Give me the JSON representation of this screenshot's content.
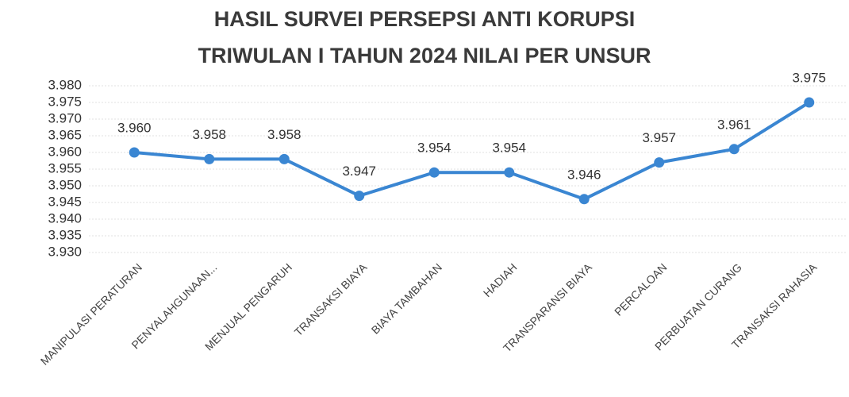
{
  "chart_data": {
    "type": "line",
    "title": [
      "HASIL SURVEI PERSEPSI ANTI KORUPSI",
      "TRIWULAN I TAHUN 2024 NILAI PER UNSUR"
    ],
    "categories": [
      "MANIPULASI PERATURAN",
      "PENYALAHGUNAAN...",
      "MENJUAL PENGARUH",
      "TRANSAKSI BIAYA",
      "BIAYA TAMBAHAN",
      "HADIAH",
      "TRANSPARANSI BIAYA",
      "PERCALOAN",
      "PERBUATAN CURANG",
      "TRANSAKSI RAHASIA"
    ],
    "values": [
      3.96,
      3.958,
      3.958,
      3.947,
      3.954,
      3.954,
      3.946,
      3.957,
      3.961,
      3.975
    ],
    "value_labels": [
      "3.960",
      "3.958",
      "3.958",
      "3.947",
      "3.954",
      "3.954",
      "3.946",
      "3.957",
      "3.961",
      "3.975"
    ],
    "color": "#3a86d2",
    "ylim": [
      3.93,
      3.98
    ],
    "yticks": [
      {
        "value": 3.93,
        "label": "3.930"
      },
      3.935,
      {
        "value": 3.94,
        "label": "3.940"
      },
      3.945,
      {
        "value": 3.95,
        "label": "3.950"
      },
      3.955,
      {
        "value": 3.96,
        "label": "3.960"
      },
      3.965,
      {
        "value": 3.97,
        "label": "3.970"
      },
      3.975,
      {
        "value": 3.98,
        "label": "3.980"
      }
    ],
    "grid": true
  }
}
